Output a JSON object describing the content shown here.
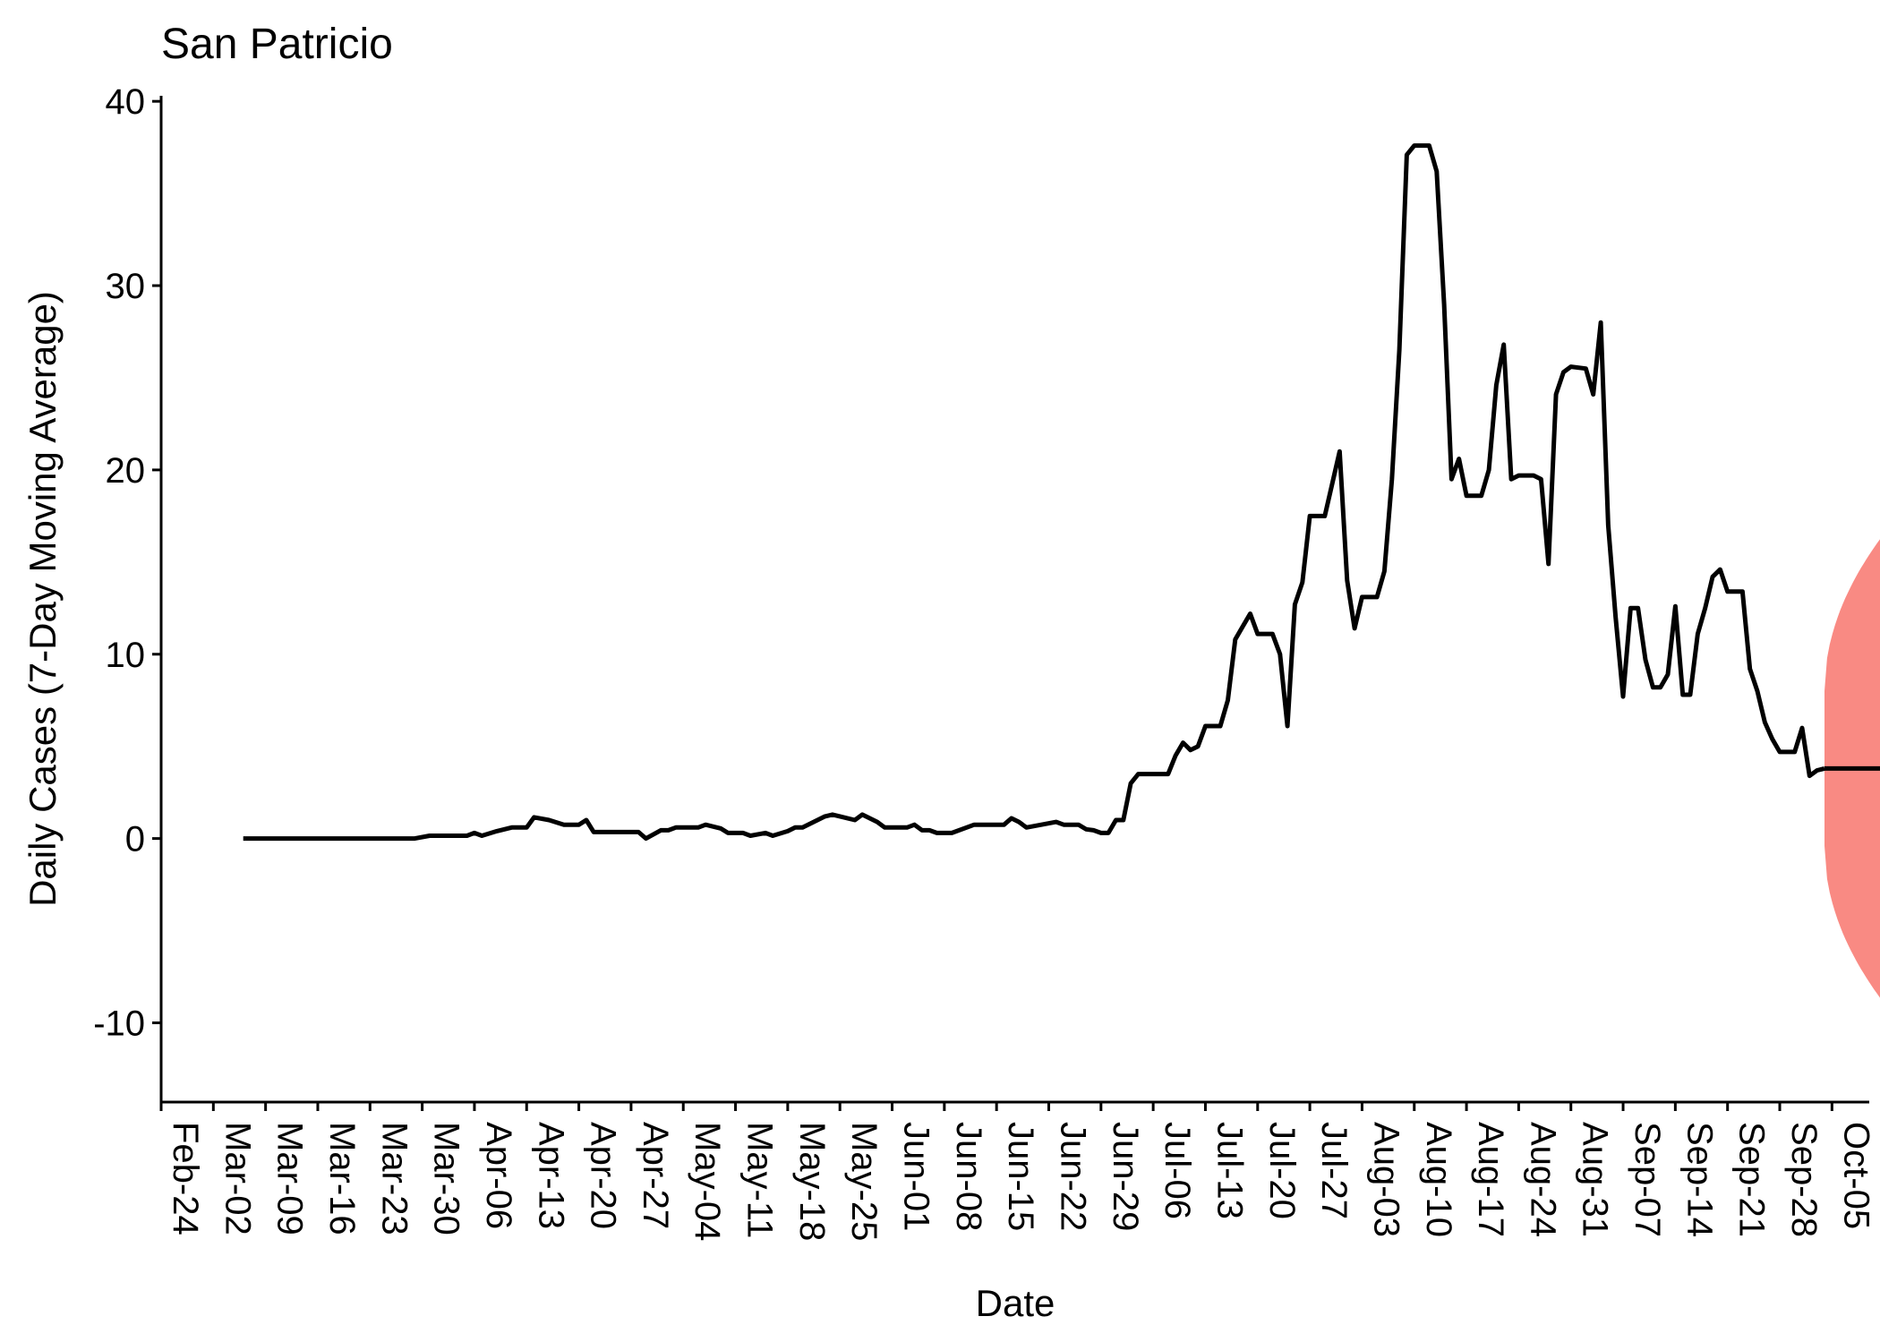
{
  "chart_data": {
    "type": "line",
    "title": "San Patricio",
    "xlabel": "Date",
    "ylabel": "Daily Cases (7-Day Moving Average)",
    "ylim": [
      -14.3,
      40.3
    ],
    "yticks": [
      -10,
      0,
      10,
      20,
      30,
      40
    ],
    "x_tick_labels": [
      "Feb-24",
      "Mar-02",
      "Mar-09",
      "Mar-16",
      "Mar-23",
      "Mar-30",
      "Apr-06",
      "Apr-13",
      "Apr-20",
      "Apr-27",
      "May-04",
      "May-11",
      "May-18",
      "May-25",
      "Jun-01",
      "Jun-08",
      "Jun-15",
      "Jun-22",
      "Jun-29",
      "Jul-06",
      "Jul-13",
      "Jul-20",
      "Jul-27",
      "Aug-03",
      "Aug-10",
      "Aug-17",
      "Aug-24",
      "Aug-31",
      "Sep-07",
      "Sep-14",
      "Sep-21",
      "Sep-28",
      "Oct-05"
    ],
    "x_tick_dates": [
      "2020-02-24",
      "2020-03-02",
      "2020-03-09",
      "2020-03-16",
      "2020-03-23",
      "2020-03-30",
      "2020-04-06",
      "2020-04-13",
      "2020-04-20",
      "2020-04-27",
      "2020-05-04",
      "2020-05-11",
      "2020-05-18",
      "2020-05-25",
      "2020-06-01",
      "2020-06-08",
      "2020-06-15",
      "2020-06-22",
      "2020-06-29",
      "2020-07-06",
      "2020-07-13",
      "2020-07-20",
      "2020-07-27",
      "2020-08-03",
      "2020-08-10",
      "2020-08-17",
      "2020-08-24",
      "2020-08-31",
      "2020-09-07",
      "2020-09-14",
      "2020-09-21",
      "2020-09-28",
      "2020-10-05"
    ],
    "xlim": [
      "2020-02-24",
      "2020-10-10"
    ],
    "series": [
      {
        "color": "#000000",
        "points": [
          [
            "2020-03-06",
            0.0
          ],
          [
            "2020-03-10",
            0.0
          ],
          [
            "2020-03-16",
            0.0
          ],
          [
            "2020-03-23",
            0.0
          ],
          [
            "2020-03-29",
            0.0
          ],
          [
            "2020-03-31",
            0.15
          ],
          [
            "2020-04-05",
            0.15
          ],
          [
            "2020-04-06",
            0.3
          ],
          [
            "2020-04-07",
            0.15
          ],
          [
            "2020-04-09",
            0.4
          ],
          [
            "2020-04-11",
            0.6
          ],
          [
            "2020-04-13",
            0.6
          ],
          [
            "2020-04-14",
            1.15
          ],
          [
            "2020-04-16",
            1.0
          ],
          [
            "2020-04-18",
            0.75
          ],
          [
            "2020-04-20",
            0.75
          ],
          [
            "2020-04-21",
            1.0
          ],
          [
            "2020-04-22",
            0.35
          ],
          [
            "2020-04-26",
            0.35
          ],
          [
            "2020-04-28",
            0.35
          ],
          [
            "2020-04-29",
            0.0
          ],
          [
            "2020-05-01",
            0.45
          ],
          [
            "2020-05-02",
            0.45
          ],
          [
            "2020-05-03",
            0.6
          ],
          [
            "2020-05-06",
            0.6
          ],
          [
            "2020-05-07",
            0.75
          ],
          [
            "2020-05-09",
            0.55
          ],
          [
            "2020-05-10",
            0.3
          ],
          [
            "2020-05-12",
            0.3
          ],
          [
            "2020-05-13",
            0.15
          ],
          [
            "2020-05-15",
            0.3
          ],
          [
            "2020-05-16",
            0.15
          ],
          [
            "2020-05-18",
            0.4
          ],
          [
            "2020-05-19",
            0.6
          ],
          [
            "2020-05-20",
            0.6
          ],
          [
            "2020-05-23",
            1.2
          ],
          [
            "2020-05-24",
            1.3
          ],
          [
            "2020-05-25",
            1.2
          ],
          [
            "2020-05-27",
            1.0
          ],
          [
            "2020-05-28",
            1.3
          ],
          [
            "2020-05-30",
            0.9
          ],
          [
            "2020-05-31",
            0.6
          ],
          [
            "2020-06-03",
            0.6
          ],
          [
            "2020-06-04",
            0.75
          ],
          [
            "2020-06-05",
            0.45
          ],
          [
            "2020-06-06",
            0.45
          ],
          [
            "2020-06-07",
            0.3
          ],
          [
            "2020-06-09",
            0.3
          ],
          [
            "2020-06-12",
            0.75
          ],
          [
            "2020-06-14",
            0.75
          ],
          [
            "2020-06-16",
            0.75
          ],
          [
            "2020-06-17",
            1.1
          ],
          [
            "2020-06-18",
            0.9
          ],
          [
            "2020-06-19",
            0.6
          ],
          [
            "2020-06-21",
            0.75
          ],
          [
            "2020-06-23",
            0.9
          ],
          [
            "2020-06-24",
            0.75
          ],
          [
            "2020-06-26",
            0.75
          ],
          [
            "2020-06-27",
            0.5
          ],
          [
            "2020-06-28",
            0.45
          ],
          [
            "2020-06-29",
            0.3
          ],
          [
            "2020-06-30",
            0.3
          ],
          [
            "2020-07-01",
            1.0
          ],
          [
            "2020-07-02",
            1.0
          ],
          [
            "2020-07-03",
            3.0
          ],
          [
            "2020-07-04",
            3.5
          ],
          [
            "2020-07-08",
            3.5
          ],
          [
            "2020-07-09",
            4.5
          ],
          [
            "2020-07-10",
            5.2
          ],
          [
            "2020-07-11",
            4.8
          ],
          [
            "2020-07-12",
            5.0
          ],
          [
            "2020-07-13",
            6.1
          ],
          [
            "2020-07-15",
            6.1
          ],
          [
            "2020-07-16",
            7.5
          ],
          [
            "2020-07-17",
            10.8
          ],
          [
            "2020-07-18",
            11.5
          ],
          [
            "2020-07-19",
            12.2
          ],
          [
            "2020-07-20",
            11.1
          ],
          [
            "2020-07-22",
            11.1
          ],
          [
            "2020-07-23",
            10.0
          ],
          [
            "2020-07-24",
            6.1
          ],
          [
            "2020-07-25",
            12.7
          ],
          [
            "2020-07-26",
            13.9
          ],
          [
            "2020-07-27",
            17.5
          ],
          [
            "2020-07-29",
            17.5
          ],
          [
            "2020-07-31",
            21.0
          ],
          [
            "2020-08-01",
            14.0
          ],
          [
            "2020-08-02",
            11.4
          ],
          [
            "2020-08-03",
            13.1
          ],
          [
            "2020-08-05",
            13.1
          ],
          [
            "2020-08-06",
            14.5
          ],
          [
            "2020-08-07",
            19.5
          ],
          [
            "2020-08-08",
            26.5
          ],
          [
            "2020-08-09",
            37.1
          ],
          [
            "2020-08-10",
            37.6
          ],
          [
            "2020-08-12",
            37.6
          ],
          [
            "2020-08-13",
            36.2
          ],
          [
            "2020-08-14",
            29.0
          ],
          [
            "2020-08-15",
            19.5
          ],
          [
            "2020-08-16",
            20.6
          ],
          [
            "2020-08-17",
            18.6
          ],
          [
            "2020-08-19",
            18.6
          ],
          [
            "2020-08-20",
            20.0
          ],
          [
            "2020-08-21",
            24.6
          ],
          [
            "2020-08-22",
            26.8
          ],
          [
            "2020-08-23",
            19.5
          ],
          [
            "2020-08-24",
            19.7
          ],
          [
            "2020-08-26",
            19.7
          ],
          [
            "2020-08-27",
            19.5
          ],
          [
            "2020-08-28",
            14.9
          ],
          [
            "2020-08-29",
            24.1
          ],
          [
            "2020-08-30",
            25.3
          ],
          [
            "2020-08-31",
            25.6
          ],
          [
            "2020-09-02",
            25.5
          ],
          [
            "2020-09-03",
            24.1
          ],
          [
            "2020-09-04",
            28.0
          ],
          [
            "2020-09-05",
            17.0
          ],
          [
            "2020-09-06",
            12.0
          ],
          [
            "2020-09-07",
            7.7
          ],
          [
            "2020-09-08",
            12.5
          ],
          [
            "2020-09-09",
            12.5
          ],
          [
            "2020-09-10",
            9.7
          ],
          [
            "2020-09-11",
            8.2
          ],
          [
            "2020-09-12",
            8.2
          ],
          [
            "2020-09-13",
            8.9
          ],
          [
            "2020-09-14",
            12.6
          ],
          [
            "2020-09-15",
            7.8
          ],
          [
            "2020-09-16",
            7.8
          ],
          [
            "2020-09-17",
            11.1
          ],
          [
            "2020-09-18",
            12.5
          ],
          [
            "2020-09-19",
            14.2
          ],
          [
            "2020-09-20",
            14.6
          ],
          [
            "2020-09-21",
            13.4
          ],
          [
            "2020-09-23",
            13.4
          ],
          [
            "2020-09-24",
            9.2
          ],
          [
            "2020-09-25",
            8.0
          ],
          [
            "2020-09-26",
            6.3
          ],
          [
            "2020-09-27",
            5.4
          ],
          [
            "2020-09-28",
            4.7
          ],
          [
            "2020-09-30",
            4.7
          ],
          [
            "2020-10-01",
            6.0
          ],
          [
            "2020-10-02",
            3.4
          ],
          [
            "2020-10-03",
            3.7
          ],
          [
            "2020-10-04",
            3.8
          ]
        ]
      },
      {
        "color": "#000000",
        "points": [
          [
            "2020-10-04",
            3.8
          ],
          [
            "2020-10-18",
            3.8
          ]
        ]
      }
    ],
    "band": {
      "color": "#F8766D",
      "start": "2020-10-04",
      "end": "2020-10-18",
      "center": 3.8,
      "start_upper": 8.0,
      "start_lower": -0.4,
      "end_upper": 19.3,
      "end_lower": -11.7
    },
    "grid": false,
    "legend": "none"
  }
}
